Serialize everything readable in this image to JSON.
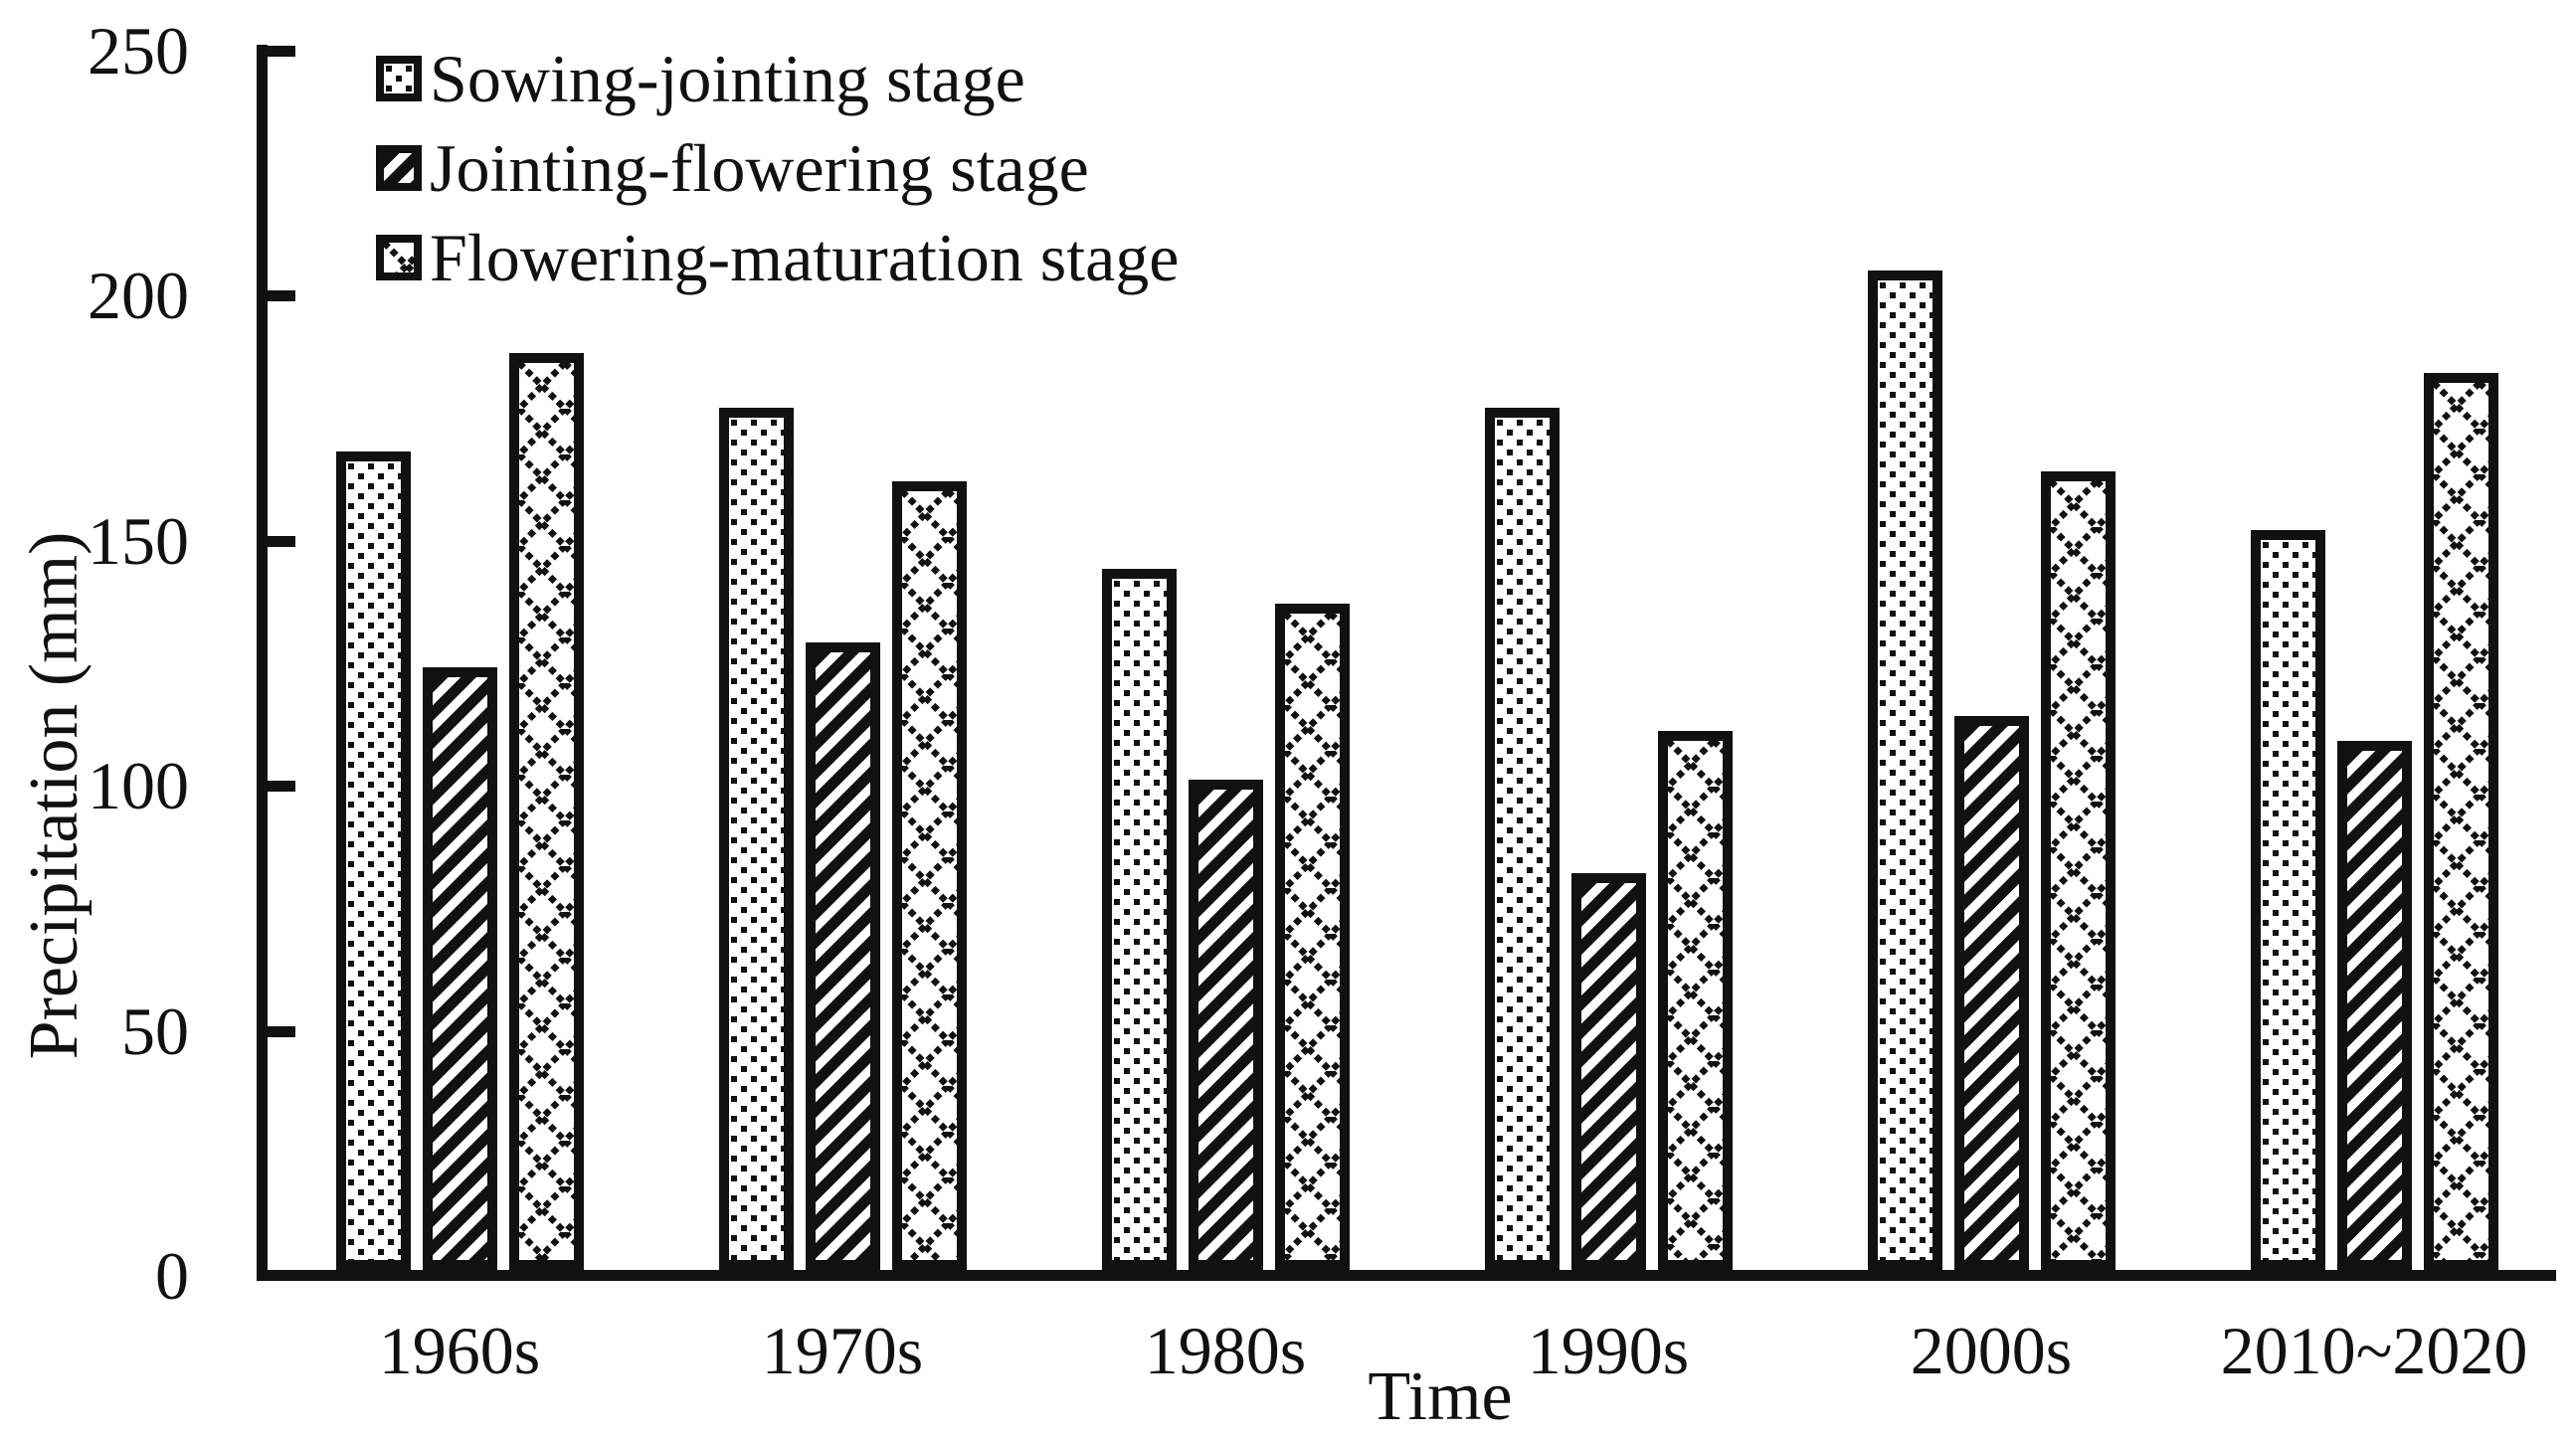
{
  "chart_data": {
    "type": "bar",
    "title": "",
    "xlabel": "Time",
    "ylabel": "Precipitation (mm)",
    "ylim": [
      0,
      250
    ],
    "yticks": [
      0,
      50,
      100,
      150,
      200,
      250
    ],
    "grid": false,
    "legend_position": "top-left",
    "ink_color": "#111111",
    "background_color": "#ffffff",
    "bar_fill": "#ffffff",
    "categories": [
      "1960s",
      "1970s",
      "1980s",
      "1990s",
      "2000s",
      "2010~2020"
    ],
    "series": [
      {
        "name": "Sowing-jointing stage",
        "pattern": "dotted-squares",
        "values": [
          167,
          176,
          143,
          176,
          204,
          151
        ]
      },
      {
        "name": "Jointing-flowering stage",
        "pattern": "diagonal-stripes",
        "values": [
          123,
          128,
          100,
          81,
          113,
          108
        ]
      },
      {
        "name": "Flowering-maturation stage",
        "pattern": "diamond-crosshatch",
        "values": [
          187,
          161,
          136,
          110,
          163,
          183
        ]
      }
    ]
  }
}
